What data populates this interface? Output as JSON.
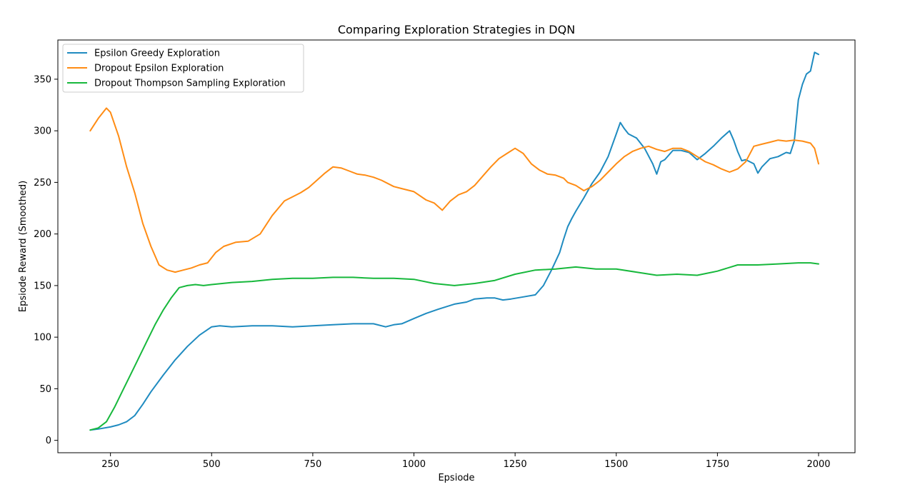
{
  "chart_data": {
    "type": "line",
    "title": "Comparing Exploration Strategies in DQN",
    "xlabel": "Epsiode",
    "ylabel": "Epsiode Reward (Smoothed)",
    "xlim": [
      120,
      2090
    ],
    "ylim": [
      -12,
      388
    ],
    "xticks": [
      250,
      500,
      750,
      1000,
      1250,
      1500,
      1750,
      2000
    ],
    "yticks": [
      0,
      50,
      100,
      150,
      200,
      250,
      300,
      350
    ],
    "grid": false,
    "legend_position": "top-left",
    "series": [
      {
        "name": "Epsilon Greedy Exploration",
        "color": "#1f8bc0",
        "x": [
          200,
          220,
          250,
          270,
          290,
          310,
          330,
          350,
          380,
          410,
          440,
          470,
          500,
          520,
          550,
          600,
          650,
          700,
          750,
          800,
          850,
          900,
          930,
          950,
          970,
          1000,
          1030,
          1060,
          1100,
          1130,
          1150,
          1180,
          1200,
          1220,
          1240,
          1270,
          1300,
          1320,
          1340,
          1360,
          1370,
          1380,
          1390,
          1400,
          1420,
          1440,
          1460,
          1480,
          1500,
          1510,
          1520,
          1530,
          1550,
          1570,
          1590,
          1600,
          1610,
          1620,
          1640,
          1660,
          1680,
          1700,
          1720,
          1740,
          1760,
          1780,
          1790,
          1800,
          1810,
          1820,
          1840,
          1850,
          1860,
          1880,
          1900,
          1920,
          1930,
          1940,
          1950,
          1960,
          1970,
          1980,
          1990,
          2000
        ],
        "y": [
          10,
          11,
          13,
          15,
          18,
          24,
          35,
          47,
          63,
          78,
          91,
          102,
          110,
          111,
          110,
          111,
          111,
          110,
          111,
          112,
          113,
          113,
          110,
          112,
          113,
          118,
          123,
          127,
          132,
          134,
          137,
          138,
          138,
          136,
          137,
          139,
          141,
          150,
          165,
          182,
          195,
          207,
          215,
          222,
          235,
          249,
          260,
          275,
          297,
          308,
          302,
          297,
          293,
          283,
          268,
          258,
          270,
          272,
          281,
          281,
          279,
          272,
          278,
          285,
          293,
          300,
          291,
          280,
          271,
          272,
          268,
          259,
          265,
          273,
          275,
          279,
          278,
          290,
          330,
          345,
          355,
          358,
          376,
          374
        ]
      },
      {
        "name": "Dropout Epsilon Exploration",
        "color": "#ff8c14",
        "x": [
          200,
          220,
          240,
          250,
          270,
          290,
          310,
          330,
          350,
          370,
          390,
          410,
          430,
          450,
          470,
          490,
          510,
          530,
          560,
          590,
          620,
          650,
          680,
          700,
          720,
          740,
          760,
          780,
          800,
          820,
          840,
          860,
          880,
          900,
          920,
          950,
          970,
          1000,
          1030,
          1050,
          1070,
          1090,
          1110,
          1130,
          1150,
          1170,
          1190,
          1210,
          1230,
          1250,
          1270,
          1290,
          1310,
          1330,
          1350,
          1370,
          1380,
          1400,
          1420,
          1440,
          1460,
          1480,
          1500,
          1520,
          1540,
          1560,
          1580,
          1600,
          1620,
          1640,
          1660,
          1680,
          1700,
          1720,
          1740,
          1760,
          1780,
          1800,
          1820,
          1840,
          1860,
          1880,
          1900,
          1920,
          1940,
          1960,
          1980,
          1990,
          2000
        ],
        "y": [
          300,
          312,
          322,
          318,
          295,
          265,
          240,
          210,
          188,
          170,
          165,
          163,
          165,
          167,
          170,
          172,
          182,
          188,
          192,
          193,
          200,
          218,
          232,
          236,
          240,
          245,
          252,
          259,
          265,
          264,
          261,
          258,
          257,
          255,
          252,
          246,
          244,
          241,
          233,
          230,
          223,
          232,
          238,
          241,
          247,
          256,
          265,
          273,
          278,
          283,
          278,
          268,
          262,
          258,
          257,
          254,
          250,
          247,
          242,
          246,
          252,
          260,
          268,
          275,
          280,
          283,
          285,
          282,
          280,
          283,
          283,
          280,
          275,
          270,
          267,
          263,
          260,
          263,
          270,
          285,
          287,
          289,
          291,
          290,
          291,
          290,
          288,
          283,
          268
        ]
      },
      {
        "name": "Dropout Thompson Sampling Exploration",
        "color": "#17b83c",
        "x": [
          200,
          220,
          240,
          260,
          280,
          300,
          320,
          340,
          360,
          380,
          400,
          420,
          440,
          460,
          480,
          500,
          550,
          600,
          650,
          700,
          750,
          800,
          850,
          900,
          950,
          1000,
          1050,
          1100,
          1150,
          1200,
          1250,
          1300,
          1350,
          1400,
          1450,
          1500,
          1550,
          1600,
          1650,
          1700,
          1750,
          1800,
          1850,
          1900,
          1950,
          1980,
          2000
        ],
        "y": [
          10,
          12,
          18,
          32,
          48,
          64,
          80,
          96,
          112,
          126,
          138,
          148,
          150,
          151,
          150,
          151,
          153,
          154,
          156,
          157,
          157,
          158,
          158,
          157,
          157,
          156,
          152,
          150,
          152,
          155,
          161,
          165,
          166,
          168,
          166,
          166,
          163,
          160,
          161,
          160,
          164,
          170,
          170,
          171,
          172,
          172,
          171
        ]
      }
    ]
  }
}
